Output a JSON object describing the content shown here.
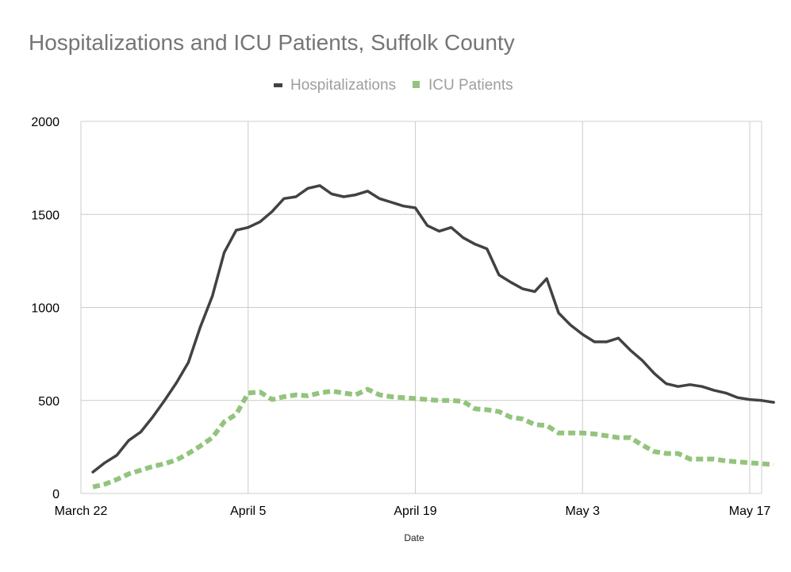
{
  "chart_data": {
    "type": "line",
    "title": "Hospitalizations and ICU Patients, Suffolk County",
    "xlabel": "Date",
    "ylabel": "",
    "ylim": [
      0,
      2000
    ],
    "y_ticks": [
      "0",
      "500",
      "1000",
      "1500",
      "2000"
    ],
    "x_ticks": [
      {
        "label": "March 22",
        "day": 0
      },
      {
        "label": "April 5",
        "day": 14
      },
      {
        "label": "April 19",
        "day": 28
      },
      {
        "label": "May 3",
        "day": 42
      },
      {
        "label": "May 17",
        "day": 56
      }
    ],
    "x_start_day": 1,
    "x_range": [
      0,
      57
    ],
    "legend_position": "top-center",
    "grid": true,
    "series": [
      {
        "name": "Hospitalizations",
        "color": "#424242",
        "style": "solid",
        "values": [
          115,
          165,
          205,
          285,
          330,
          410,
          500,
          595,
          705,
          895,
          1060,
          1295,
          1415,
          1430,
          1460,
          1515,
          1585,
          1595,
          1640,
          1655,
          1610,
          1595,
          1605,
          1625,
          1585,
          1565,
          1545,
          1535,
          1440,
          1410,
          1430,
          1375,
          1340,
          1315,
          1175,
          1135,
          1100,
          1085,
          1155,
          970,
          905,
          855,
          815,
          815,
          835,
          770,
          715,
          645,
          590,
          575,
          585,
          575,
          555,
          540,
          515,
          505,
          500,
          490
        ]
      },
      {
        "name": "ICU Patients",
        "color": "#93c47d",
        "style": "dotted",
        "values": [
          35,
          50,
          75,
          105,
          125,
          145,
          160,
          180,
          215,
          255,
          300,
          385,
          425,
          540,
          545,
          505,
          520,
          530,
          525,
          540,
          550,
          540,
          530,
          560,
          530,
          520,
          515,
          510,
          505,
          500,
          500,
          495,
          455,
          450,
          440,
          410,
          400,
          370,
          365,
          325,
          325,
          325,
          320,
          310,
          300,
          300,
          260,
          225,
          215,
          215,
          185,
          185,
          185,
          175,
          170,
          165,
          160,
          155
        ]
      }
    ]
  }
}
